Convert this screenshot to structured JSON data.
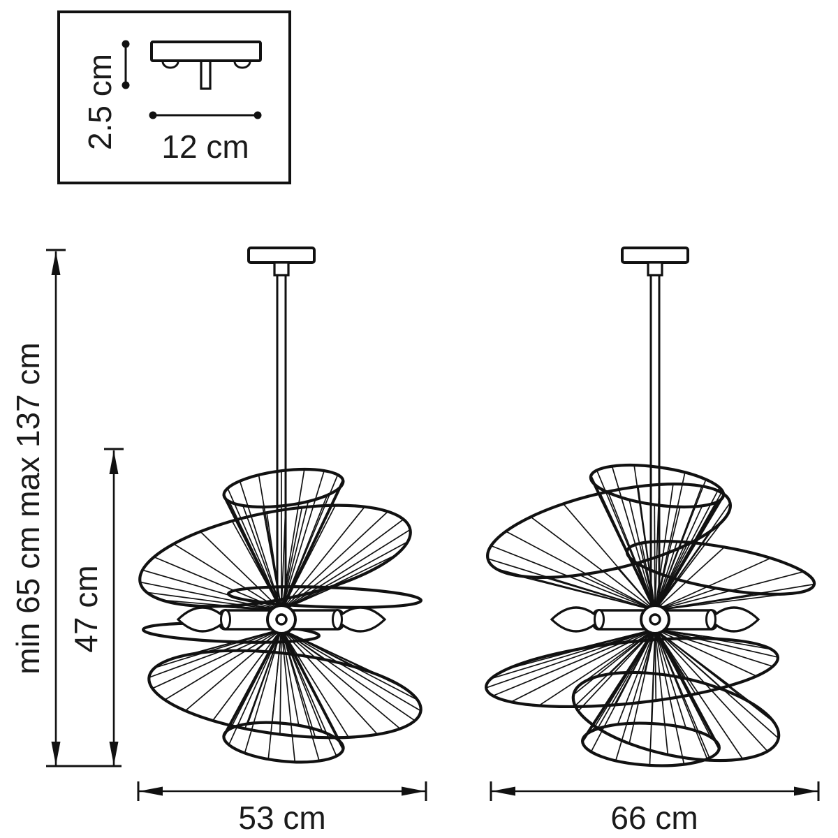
{
  "colors": {
    "line": "#111111",
    "background": "#ffffff"
  },
  "inset": {
    "height_label": "2.5 cm",
    "width_label": "12 cm"
  },
  "main": {
    "overall_height_label": "min 65 cm max 137 cm",
    "shade_height_label": "47 cm",
    "left_fixture_width_label": "53 cm",
    "right_fixture_width_label": "66 cm"
  }
}
